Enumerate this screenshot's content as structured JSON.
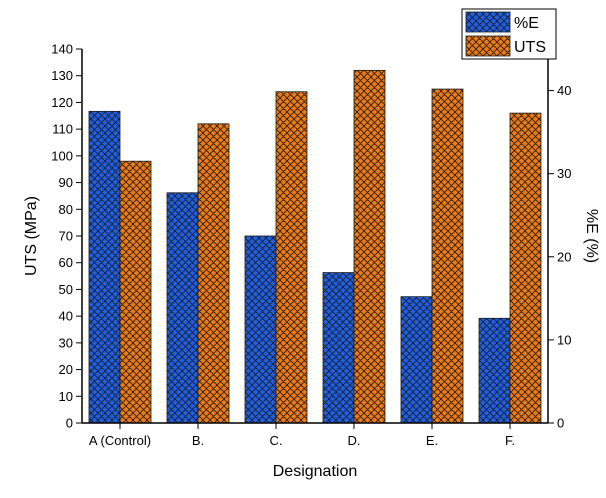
{
  "chart_data": {
    "type": "bar",
    "categories": [
      "A (Control)",
      "B.",
      "C.",
      "D.",
      "E.",
      "F."
    ],
    "xlabel": "Designation",
    "ylabel": "UTS (MPa)",
    "y2label": "%E (%)",
    "ylim": [
      0,
      140
    ],
    "y2lim": [
      0,
      45
    ],
    "yticks": [
      0,
      10,
      20,
      30,
      40,
      50,
      60,
      70,
      80,
      90,
      100,
      110,
      120,
      130,
      140
    ],
    "y2ticks": [
      0,
      10,
      20,
      30,
      40
    ],
    "grid": false,
    "legend_position": "top-right",
    "series": [
      {
        "name": "%E",
        "axis": "right",
        "color": "#1f5fe6",
        "hatch": "crosshatch",
        "values": [
          37.5,
          27.7,
          22.5,
          18.1,
          15.2,
          12.6
        ]
      },
      {
        "name": "UTS",
        "axis": "left",
        "color": "#ef7a14",
        "hatch": "crosshatch",
        "values": [
          98,
          112,
          124,
          132,
          125,
          116
        ]
      }
    ]
  }
}
